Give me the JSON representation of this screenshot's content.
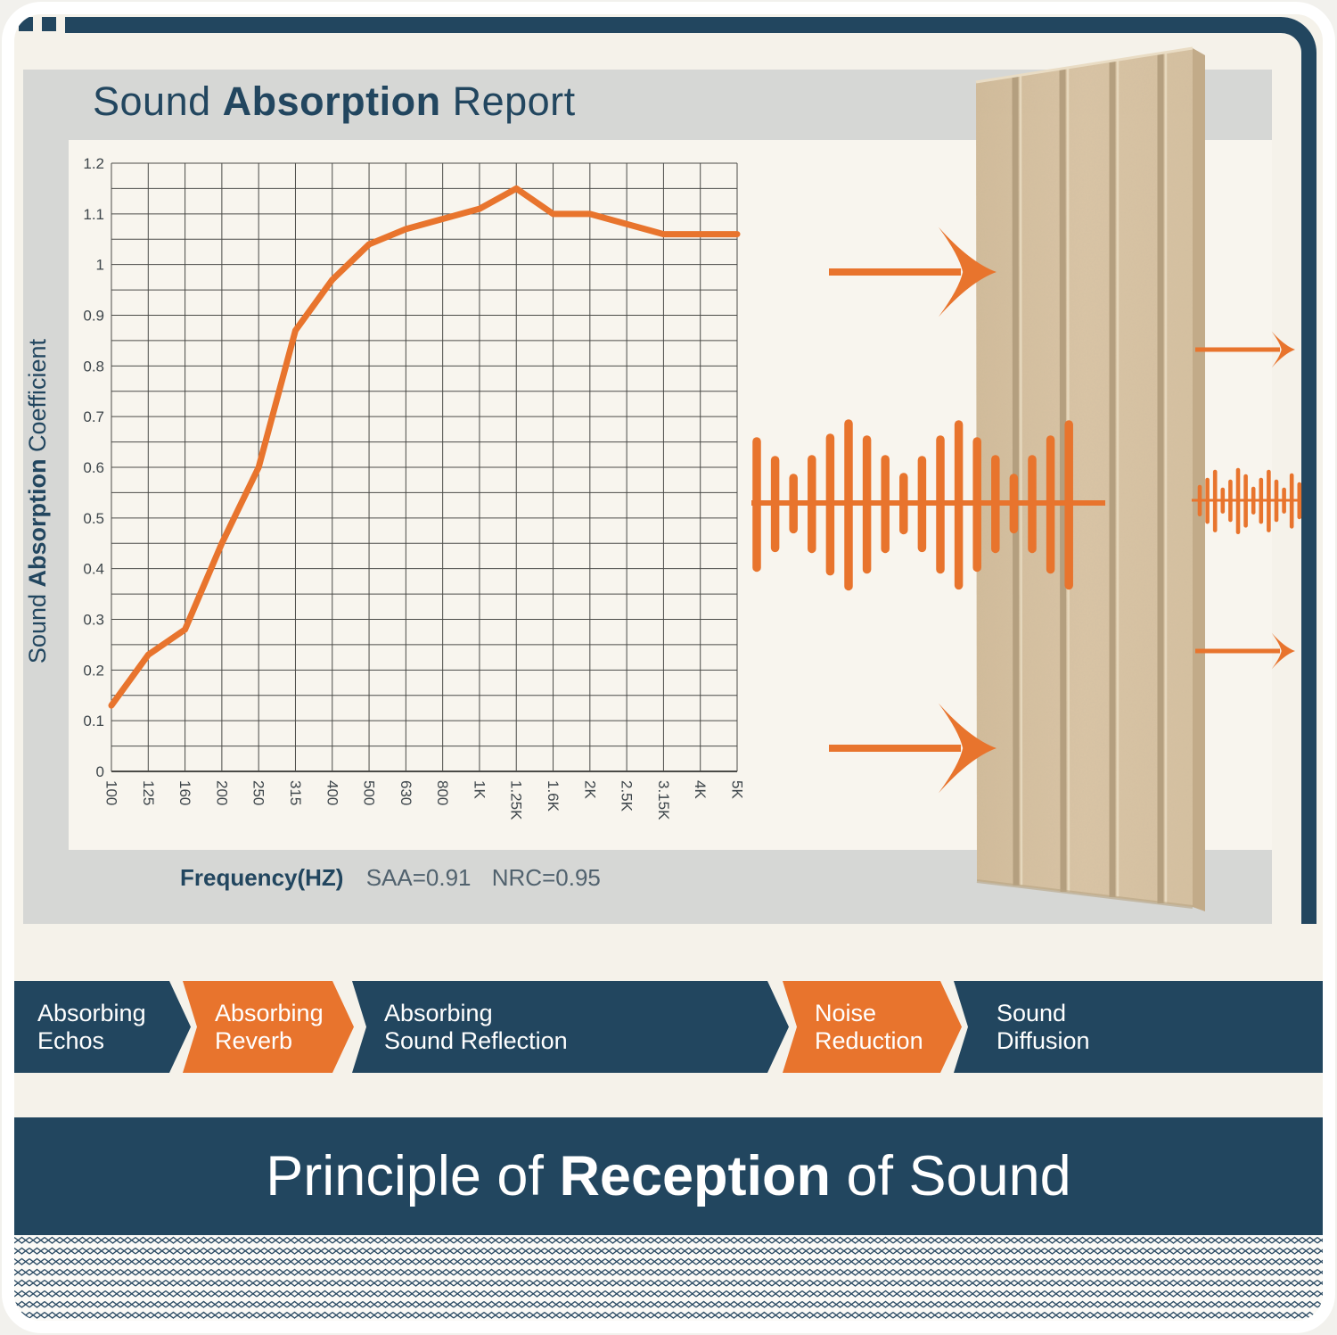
{
  "colors": {
    "navy": "#22465f",
    "orange": "#e8742d",
    "tan": "#d8c3a3",
    "tan_groove": "#b49f7f",
    "gray_card": "#d6d7d5",
    "cream": "#f5f2ea",
    "plot_bg": "#f8f5ee",
    "grid": "#4b4b48"
  },
  "header": {
    "title_part1": "Sound ",
    "title_part2": "Absorption",
    "title_part3": " Report"
  },
  "y_axis_label": {
    "part1": "Sound ",
    "part2": "Absorption",
    "part3": " Coefficient"
  },
  "caption": {
    "frequency": "Frequency(HZ)",
    "saa": "SAA=0.91",
    "nrc": "NRC=0.95"
  },
  "chart_data": {
    "type": "line",
    "title": "Sound Absorption Report",
    "xlabel": "Frequency(HZ)",
    "ylabel": "Sound Absorption Coefficient",
    "categories": [
      "100",
      "125",
      "160",
      "200",
      "250",
      "315",
      "400",
      "500",
      "630",
      "800",
      "1K",
      "1.25K",
      "1.6K",
      "2K",
      "2.5K",
      "3.15K",
      "4K",
      "5K"
    ],
    "values": [
      0.13,
      0.23,
      0.28,
      0.45,
      0.6,
      0.87,
      0.97,
      1.04,
      1.07,
      1.09,
      1.11,
      1.15,
      1.1,
      1.1,
      1.08,
      1.06,
      1.06,
      1.06
    ],
    "ylim": [
      0,
      1.2
    ],
    "y_tick_step": 0.1,
    "y_minor_step": 0.05,
    "y_tick_labels": [
      "1.2",
      "1.1",
      "1",
      "0.9",
      "0.8",
      "0.7",
      "0.6",
      "0.5",
      "0.4",
      "0.3",
      "0.2",
      "0.1",
      "0"
    ],
    "grid": true,
    "legend": "none",
    "line_color": "#e8742d",
    "stats": {
      "SAA": "0.91",
      "NRC": "0.95"
    }
  },
  "illustration": {
    "panel": "acoustic-felt-panel",
    "waveform_icon": "sound-waveform",
    "arrow_icon": "sound-direction-arrow"
  },
  "banners": {
    "items": [
      {
        "line1": "Absorbing",
        "line2": "Echos",
        "color": "navy"
      },
      {
        "line1": "Absorbing",
        "line2": "Reverb",
        "color": "orange"
      },
      {
        "line1": "Absorbing",
        "line2": "Sound Reflection",
        "color": "navy"
      },
      {
        "line1": "Noise",
        "line2": "Reduction",
        "color": "orange"
      },
      {
        "line1": "Sound",
        "line2": "Diffusion",
        "color": "navy"
      }
    ]
  },
  "footer": {
    "part1": "Principle of ",
    "part2": "Reception",
    "part3": " of Sound"
  }
}
